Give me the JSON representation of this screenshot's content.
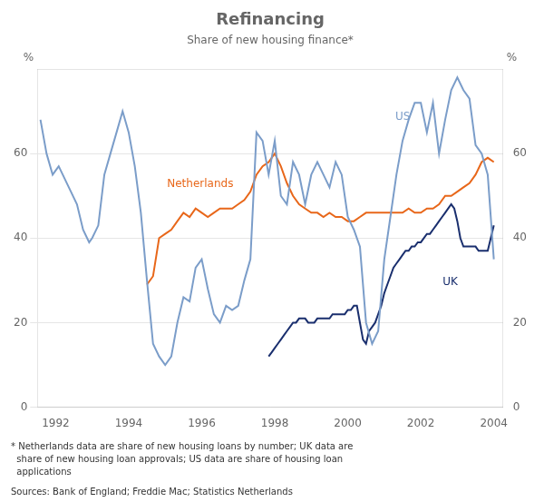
{
  "chart_data": {
    "type": "line",
    "title": "Refinancing",
    "subtitle": "Share of new housing finance*",
    "ylabel": "%",
    "y2label": "%",
    "xlim": [
      1991.5,
      2004.25
    ],
    "xticks": [
      1992,
      1994,
      1996,
      1998,
      2000,
      2002,
      2004
    ],
    "ylim": [
      0,
      80
    ],
    "yticks": [
      0,
      20,
      40,
      60
    ],
    "y2lim": [
      0,
      80
    ],
    "y2ticks": [
      0,
      20,
      40,
      60
    ],
    "grid": "y",
    "notes": [
      "* Netherlands data are share of new housing loans by number; UK data are",
      "  share of new housing loan approvals; US data are share of housing loan",
      "  applications"
    ],
    "source": "Sources: Bank of England; Freddie Mac; Statistics Netherlands",
    "annotations": [
      {
        "text": "US",
        "x": 2001.3,
        "y": 68,
        "color": "#7B9DC9"
      },
      {
        "text": "Netherlands",
        "x": 1995.05,
        "y": 52,
        "color": "#E8671A"
      },
      {
        "text": "UK",
        "x": 2002.6,
        "y": 29,
        "color": "#1A2F6E"
      }
    ],
    "series": [
      {
        "color": "#7B9DC9",
        "x": [
          1991.583,
          1991.75,
          1991.917,
          1992.083,
          1992.25,
          1992.417,
          1992.583,
          1992.75,
          1992.917,
          1993.0,
          1993.167,
          1993.333,
          1993.5,
          1993.667,
          1993.833,
          1994.0,
          1994.167,
          1994.333,
          1994.5,
          1994.667,
          1994.833,
          1995.0,
          1995.167,
          1995.333,
          1995.5,
          1995.667,
          1995.833,
          1996.0,
          1996.167,
          1996.333,
          1996.5,
          1996.667,
          1996.833,
          1997.0,
          1997.167,
          1997.333,
          1997.5,
          1997.667,
          1997.833,
          1998.0,
          1998.167,
          1998.333,
          1998.5,
          1998.667,
          1998.833,
          1999.0,
          1999.167,
          1999.333,
          1999.5,
          1999.667,
          1999.833,
          2000.0,
          2000.167,
          2000.333,
          2000.5,
          2000.667,
          2000.833,
          2001.0,
          2001.167,
          2001.333,
          2001.5,
          2001.667,
          2001.833,
          2002.0,
          2002.167,
          2002.333,
          2002.5,
          2002.667,
          2002.833,
          2003.0,
          2003.167,
          2003.333,
          2003.5,
          2003.667,
          2003.833,
          2004.0
        ],
        "values": [
          68,
          60,
          55,
          57,
          54,
          51,
          48,
          42,
          39,
          40,
          43,
          55,
          60,
          65,
          70,
          65,
          57,
          46,
          30,
          15,
          12,
          10,
          12,
          20,
          26,
          25,
          33,
          35,
          28,
          22,
          20,
          24,
          23,
          24,
          30,
          35,
          65,
          63,
          55,
          63,
          50,
          48,
          58,
          55,
          48,
          55,
          58,
          55,
          52,
          58,
          55,
          45,
          42,
          38,
          20,
          15,
          18,
          35,
          45,
          55,
          63,
          68,
          72,
          72,
          65,
          72,
          60,
          68,
          75,
          78,
          75,
          73,
          62,
          60,
          55,
          35
        ]
      },
      {
        "color": "#E8671A",
        "x": [
          1994.5,
          1994.667,
          1994.833,
          1995.0,
          1995.167,
          1995.333,
          1995.5,
          1995.667,
          1995.833,
          1996.0,
          1996.167,
          1996.333,
          1996.5,
          1996.667,
          1996.833,
          1997.0,
          1997.167,
          1997.333,
          1997.5,
          1997.667,
          1997.833,
          1998.0,
          1998.167,
          1998.333,
          1998.5,
          1998.667,
          1998.833,
          1999.0,
          1999.167,
          1999.333,
          1999.5,
          1999.667,
          1999.833,
          2000.0,
          2000.167,
          2000.333,
          2000.5,
          2000.667,
          2000.833,
          2001.0,
          2001.167,
          2001.333,
          2001.5,
          2001.667,
          2001.833,
          2002.0,
          2002.167,
          2002.333,
          2002.5,
          2002.667,
          2002.833,
          2003.0,
          2003.167,
          2003.333,
          2003.5,
          2003.667,
          2003.833,
          2004.0
        ],
        "values": [
          29,
          31,
          40,
          41,
          42,
          44,
          46,
          45,
          47,
          46,
          45,
          46,
          47,
          47,
          47,
          48,
          49,
          51,
          55,
          57,
          58,
          60,
          57,
          53,
          50,
          48,
          47,
          46,
          46,
          45,
          46,
          45,
          45,
          44,
          44,
          45,
          46,
          46,
          46,
          46,
          46,
          46,
          46,
          47,
          46,
          46,
          47,
          47,
          48,
          50,
          50,
          51,
          52,
          53,
          55,
          58,
          59,
          58
        ]
      },
      {
        "color": "#1A2F6E",
        "x": [
          1997.833,
          1997.917,
          1998.0,
          1998.083,
          1998.167,
          1998.25,
          1998.333,
          1998.417,
          1998.5,
          1998.583,
          1998.667,
          1998.75,
          1998.833,
          1998.917,
          1999.0,
          1999.083,
          1999.167,
          1999.25,
          1999.333,
          1999.417,
          1999.5,
          1999.583,
          1999.667,
          1999.75,
          1999.833,
          1999.917,
          2000.0,
          2000.083,
          2000.167,
          2000.25,
          2000.333,
          2000.417,
          2000.5,
          2000.583,
          2000.667,
          2000.75,
          2000.833,
          2000.917,
          2001.0,
          2001.083,
          2001.167,
          2001.25,
          2001.333,
          2001.417,
          2001.5,
          2001.583,
          2001.667,
          2001.75,
          2001.833,
          2001.917,
          2002.0,
          2002.083,
          2002.167,
          2002.25,
          2002.333,
          2002.417,
          2002.5,
          2002.583,
          2002.667,
          2002.75,
          2002.833,
          2002.917,
          2003.0,
          2003.083,
          2003.167,
          2003.25,
          2003.333,
          2003.417,
          2003.5,
          2003.583,
          2003.667,
          2003.75,
          2003.833,
          2003.917,
          2004.0
        ],
        "values": [
          12,
          13,
          14,
          15,
          16,
          17,
          18,
          19,
          20,
          20,
          21,
          21,
          21,
          20,
          20,
          20,
          21,
          21,
          21,
          21,
          21,
          22,
          22,
          22,
          22,
          22,
          23,
          23,
          24,
          24,
          20,
          16,
          15,
          18,
          19,
          20,
          22,
          24,
          27,
          29,
          31,
          33,
          34,
          35,
          36,
          37,
          37,
          38,
          38,
          39,
          39,
          40,
          41,
          41,
          42,
          43,
          44,
          45,
          46,
          47,
          48,
          47,
          44,
          40,
          38,
          38,
          38,
          38,
          38,
          37,
          37,
          37,
          37,
          40,
          43
        ]
      }
    ]
  }
}
